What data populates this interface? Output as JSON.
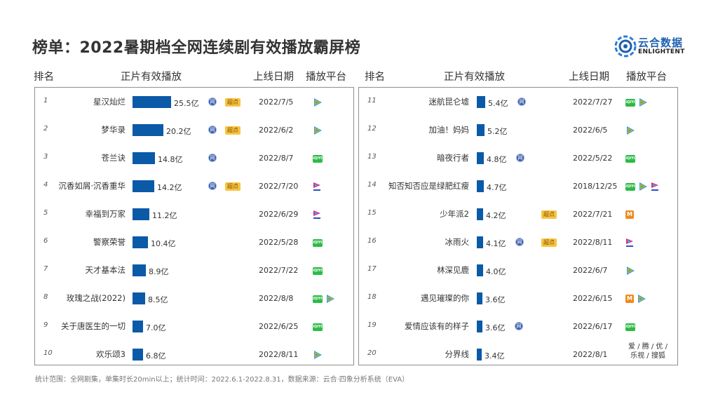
{
  "title": "榜单：2022暑期档全网连续剧有效播放霸屏榜",
  "logo": {
    "cn": "云合数据",
    "en": "ENLIGHTENT"
  },
  "headers": {
    "rank": "排名",
    "play": "正片有效播放",
    "date": "上线日期",
    "platform": "播放平台"
  },
  "badge_text": "超点",
  "net_text": "网",
  "footnote": "统计范围：全网剧集，单集时长20min以上；统计时间：2022.6.1-2022.8.31，数据来源：云合·四象分析系统（EVA）",
  "colors": {
    "bar": "#0a5aa8",
    "badge": "#f4c542",
    "iqiyi": "#2dbb46",
    "mango": "#f08a1c",
    "panel_border": "#8f8f8f"
  },
  "chart_data": {
    "type": "bar",
    "unit": "亿",
    "rows": [
      {
        "rank": "1",
        "name": "星汉灿烂",
        "value": 25.5,
        "label": "25.5亿",
        "date": "2022/7/5",
        "net": true,
        "badge": true,
        "platforms": [
          "tencent"
        ]
      },
      {
        "rank": "2",
        "name": "梦华录",
        "value": 20.2,
        "label": "20.2亿",
        "date": "2022/6/2",
        "net": true,
        "badge": true,
        "platforms": [
          "tencent"
        ]
      },
      {
        "rank": "3",
        "name": "苍兰诀",
        "value": 14.8,
        "label": "14.8亿",
        "date": "2022/8/7",
        "net": true,
        "badge": false,
        "platforms": [
          "iqiyi"
        ]
      },
      {
        "rank": "4",
        "name": "沉香如屑·沉香重华",
        "value": 14.2,
        "label": "14.2亿",
        "date": "2022/7/20",
        "net": true,
        "badge": true,
        "platforms": [
          "youku"
        ]
      },
      {
        "rank": "5",
        "name": "幸福到万家",
        "value": 11.2,
        "label": "11.2亿",
        "date": "2022/6/29",
        "net": false,
        "badge": false,
        "platforms": [
          "youku"
        ]
      },
      {
        "rank": "6",
        "name": "警察荣誉",
        "value": 10.4,
        "label": "10.4亿",
        "date": "2022/5/28",
        "net": false,
        "badge": false,
        "platforms": [
          "iqiyi"
        ]
      },
      {
        "rank": "7",
        "name": "天才基本法",
        "value": 8.9,
        "label": "8.9亿",
        "date": "2022/7/22",
        "net": false,
        "badge": false,
        "platforms": [
          "iqiyi"
        ]
      },
      {
        "rank": "8",
        "name": "玫瑰之战(2022)",
        "value": 8.5,
        "label": "8.5亿",
        "date": "2022/8/8",
        "net": false,
        "badge": false,
        "platforms": [
          "iqiyi",
          "tencent"
        ]
      },
      {
        "rank": "9",
        "name": "关于唐医生的一切",
        "value": 7.0,
        "label": "7.0亿",
        "date": "2022/6/25",
        "net": false,
        "badge": false,
        "platforms": [
          "iqiyi"
        ]
      },
      {
        "rank": "10",
        "name": "欢乐颂3",
        "value": 6.8,
        "label": "6.8亿",
        "date": "2022/8/11",
        "net": false,
        "badge": false,
        "platforms": [
          "tencent"
        ]
      },
      {
        "rank": "11",
        "name": "迷航昆仑墟",
        "value": 5.4,
        "label": "5.4亿",
        "date": "2022/7/27",
        "net": true,
        "badge": false,
        "platforms": [
          "iqiyi",
          "tencent"
        ]
      },
      {
        "rank": "12",
        "name": "加油！妈妈",
        "value": 5.2,
        "label": "5.2亿",
        "date": "2022/6/5",
        "net": false,
        "badge": false,
        "platforms": [
          "tencent"
        ]
      },
      {
        "rank": "13",
        "name": "暗夜行者",
        "value": 4.8,
        "label": "4.8亿",
        "date": "2022/5/22",
        "net": true,
        "badge": false,
        "platforms": [
          "iqiyi"
        ]
      },
      {
        "rank": "14",
        "name": "知否知否应是绿肥红瘦",
        "value": 4.7,
        "label": "4.7亿",
        "date": "2018/12/25",
        "net": false,
        "badge": false,
        "platforms": [
          "iqiyi",
          "tencent",
          "youku"
        ]
      },
      {
        "rank": "15",
        "name": "少年派2",
        "value": 4.2,
        "label": "4.2亿",
        "date": "2022/7/21",
        "net": false,
        "badge": true,
        "platforms": [
          "mango"
        ]
      },
      {
        "rank": "16",
        "name": "冰雨火",
        "value": 4.1,
        "label": "4.1亿",
        "date": "2022/8/11",
        "net": true,
        "badge": true,
        "platforms": [
          "youku"
        ]
      },
      {
        "rank": "17",
        "name": "林深见鹿",
        "value": 4.0,
        "label": "4.0亿",
        "date": "2022/6/7",
        "net": false,
        "badge": false,
        "platforms": [
          "tencent"
        ]
      },
      {
        "rank": "18",
        "name": "遇见璀璨的你",
        "value": 3.6,
        "label": "3.6亿",
        "date": "2022/6/15",
        "net": false,
        "badge": false,
        "platforms": [
          "mango",
          "tencent"
        ]
      },
      {
        "rank": "19",
        "name": "爱情应该有的样子",
        "value": 3.6,
        "label": "3.6亿",
        "date": "2022/6/17",
        "net": true,
        "badge": false,
        "platforms": [
          "iqiyi"
        ]
      },
      {
        "rank": "20",
        "name": "分界线",
        "value": 3.4,
        "label": "3.4亿",
        "date": "2022/8/1",
        "net": false,
        "badge": false,
        "platforms_text": "爱 / 腾 / 优 /\n乐视 / 搜狐",
        "platforms": []
      }
    ]
  }
}
